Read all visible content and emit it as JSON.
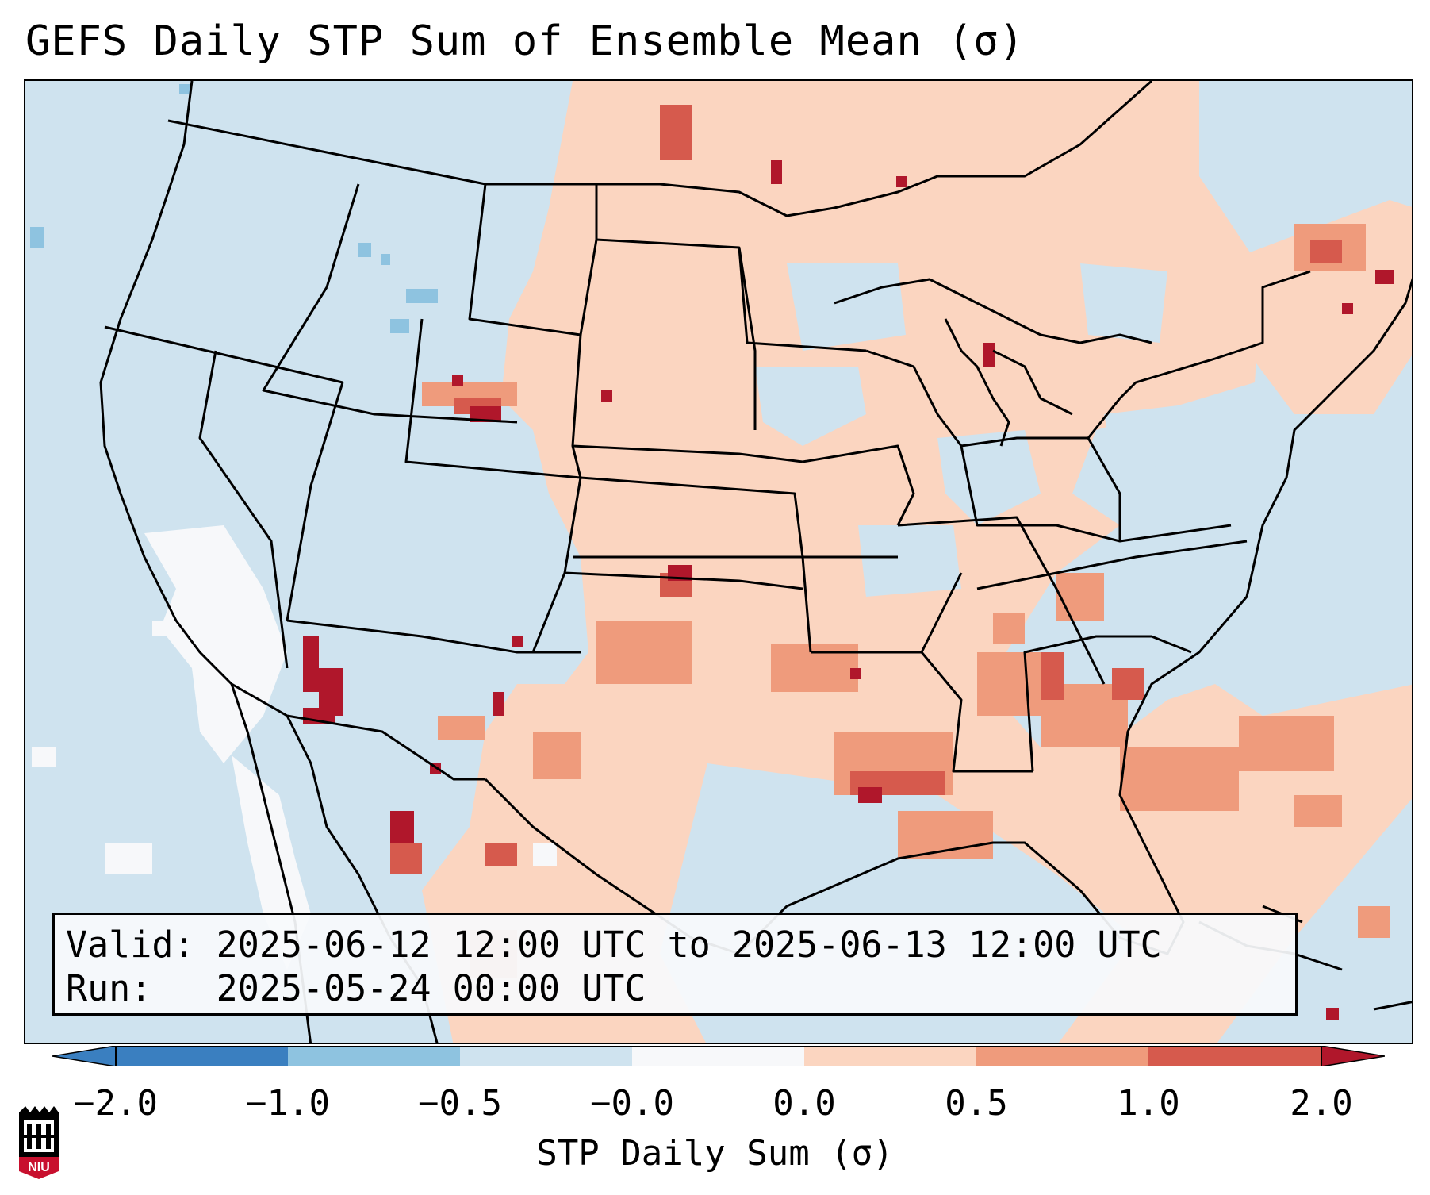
{
  "title": "GEFS Daily STP Sum of Ensemble Mean (σ)",
  "info": {
    "valid_line": "Valid: 2025-06-12 12:00 UTC to 2025-06-13 12:00 UTC",
    "run_line": "Run:   2025-05-24 00:00 UTC"
  },
  "colorbar": {
    "label": "STP Daily Sum (σ)",
    "ticks": [
      "−2.0",
      "−1.0",
      "−0.5",
      "−0.0",
      "0.0",
      "0.5",
      "1.0",
      "2.0"
    ],
    "colors": [
      "#3a7fc0",
      "#8ec3e0",
      "#cfe3ef",
      "#f7f8fa",
      "#fbd5c0",
      "#ef9b7c",
      "#d65a4d",
      "#b0172b"
    ]
  },
  "map": {
    "background_color": "#cfe3ef",
    "low_cells_color": "#8ec3e0",
    "white_cells_color": "#f7f8fa",
    "light_red_color": "#fbd5c0",
    "mid_red_color": "#ef9b7c",
    "red_color": "#d65a4d",
    "dark_red_color": "#b0172b"
  },
  "logo": {
    "text": "NIU",
    "color": "#c8102e"
  }
}
